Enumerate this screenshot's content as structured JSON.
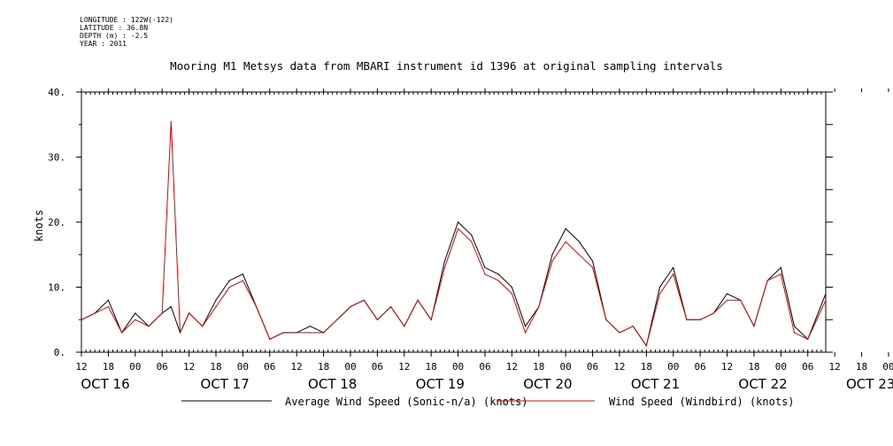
{
  "meta": {
    "longitude": "LONGITUDE : 122W(-122)",
    "latitude": "LATITUDE : 36.8N",
    "depth": "DEPTH (m) : -2.5",
    "year": "YEAR : 2011"
  },
  "colors": {
    "average": "#000000",
    "windbird": "#dd0000"
  },
  "chart_data": {
    "type": "line",
    "title": "Mooring M1 Metsys data from MBARI instrument id 1396 at original sampling intervals",
    "xlabel": "",
    "ylabel": "knots",
    "ylim": [
      0,
      40
    ],
    "yticks": [
      0,
      10,
      20,
      30,
      40
    ],
    "ytick_labels": [
      "0.",
      "10.",
      "20.",
      "30.",
      "40."
    ],
    "xlim": [
      "2011-10-16 12:00",
      "2011-10-23 10:00"
    ],
    "hour_ticks": [
      "12",
      "18",
      "00",
      "06",
      "12",
      "18",
      "00",
      "06",
      "12",
      "18",
      "00",
      "06",
      "12",
      "18",
      "00",
      "06",
      "12",
      "18",
      "00",
      "06",
      "12",
      "18",
      "00",
      "06",
      "12",
      "18",
      "00",
      "06",
      "12",
      "18",
      "00",
      "06"
    ],
    "date_labels": [
      "OCT 16",
      "OCT 17",
      "OCT 18",
      "OCT 19",
      "OCT 20",
      "OCT 21",
      "OCT 22",
      "OCT 23"
    ],
    "grid": false,
    "legend_position": "bottom",
    "series": [
      {
        "name": "Average Wind Speed (Sonic-n/a) (knots)",
        "x": [
          "2011-10-16 12:00",
          "2011-10-16 15:00",
          "2011-10-16 18:00",
          "2011-10-16 21:00",
          "2011-10-17 00:00",
          "2011-10-17 03:00",
          "2011-10-17 06:00",
          "2011-10-17 08:00",
          "2011-10-17 10:00",
          "2011-10-17 12:00",
          "2011-10-17 15:00",
          "2011-10-17 18:00",
          "2011-10-17 21:00",
          "2011-10-18 00:00",
          "2011-10-18 03:00",
          "2011-10-18 06:00",
          "2011-10-18 09:00",
          "2011-10-18 12:00",
          "2011-10-18 15:00",
          "2011-10-18 18:00",
          "2011-10-18 21:00",
          "2011-10-19 00:00",
          "2011-10-19 03:00",
          "2011-10-19 06:00",
          "2011-10-19 09:00",
          "2011-10-19 12:00",
          "2011-10-19 15:00",
          "2011-10-19 18:00",
          "2011-10-19 21:00",
          "2011-10-20 00:00",
          "2011-10-20 03:00",
          "2011-10-20 06:00",
          "2011-10-20 09:00",
          "2011-10-20 12:00",
          "2011-10-20 15:00",
          "2011-10-20 18:00",
          "2011-10-20 21:00",
          "2011-10-21 00:00",
          "2011-10-21 03:00",
          "2011-10-21 06:00",
          "2011-10-21 09:00",
          "2011-10-21 12:00",
          "2011-10-21 15:00",
          "2011-10-21 18:00",
          "2011-10-21 21:00",
          "2011-10-22 00:00",
          "2011-10-22 03:00",
          "2011-10-22 06:00",
          "2011-10-22 09:00",
          "2011-10-22 12:00",
          "2011-10-22 15:00",
          "2011-10-22 18:00",
          "2011-10-22 21:00",
          "2011-10-23 00:00",
          "2011-10-23 03:00",
          "2011-10-23 06:00",
          "2011-10-23 10:00"
        ],
        "values": [
          5,
          6,
          8,
          3,
          6,
          4,
          6,
          7,
          3,
          6,
          4,
          8,
          11,
          12,
          7,
          2,
          3,
          3,
          4,
          3,
          5,
          7,
          8,
          5,
          7,
          4,
          8,
          5,
          14,
          20,
          18,
          13,
          12,
          10,
          4,
          7,
          15,
          19,
          17,
          14,
          5,
          3,
          4,
          1,
          10,
          13,
          5,
          5,
          6,
          9,
          8,
          4,
          11,
          13,
          4,
          2,
          9
        ]
      },
      {
        "name": "Wind Speed (Windbird) (knots)",
        "x": [
          "2011-10-16 12:00",
          "2011-10-16 15:00",
          "2011-10-16 18:00",
          "2011-10-16 21:00",
          "2011-10-17 00:00",
          "2011-10-17 03:00",
          "2011-10-17 06:00",
          "2011-10-17 08:00",
          "2011-10-17 10:00",
          "2011-10-17 12:00",
          "2011-10-17 15:00",
          "2011-10-17 18:00",
          "2011-10-17 21:00",
          "2011-10-18 00:00",
          "2011-10-18 03:00",
          "2011-10-18 06:00",
          "2011-10-18 09:00",
          "2011-10-18 12:00",
          "2011-10-18 15:00",
          "2011-10-18 18:00",
          "2011-10-18 21:00",
          "2011-10-19 00:00",
          "2011-10-19 03:00",
          "2011-10-19 06:00",
          "2011-10-19 09:00",
          "2011-10-19 12:00",
          "2011-10-19 15:00",
          "2011-10-19 18:00",
          "2011-10-19 21:00",
          "2011-10-20 00:00",
          "2011-10-20 03:00",
          "2011-10-20 06:00",
          "2011-10-20 09:00",
          "2011-10-20 12:00",
          "2011-10-20 15:00",
          "2011-10-20 18:00",
          "2011-10-20 21:00",
          "2011-10-21 00:00",
          "2011-10-21 03:00",
          "2011-10-21 06:00",
          "2011-10-21 09:00",
          "2011-10-21 12:00",
          "2011-10-21 15:00",
          "2011-10-21 18:00",
          "2011-10-21 21:00",
          "2011-10-22 00:00",
          "2011-10-22 03:00",
          "2011-10-22 06:00",
          "2011-10-22 09:00",
          "2011-10-22 12:00",
          "2011-10-22 15:00",
          "2011-10-22 18:00",
          "2011-10-22 21:00",
          "2011-10-23 00:00",
          "2011-10-23 03:00",
          "2011-10-23 06:00",
          "2011-10-23 10:00"
        ],
        "values": [
          5,
          6,
          7,
          3,
          5,
          4,
          6,
          35.5,
          3,
          6,
          4,
          7,
          10,
          11,
          7,
          2,
          3,
          3,
          3,
          3,
          5,
          7,
          8,
          5,
          7,
          4,
          8,
          5,
          13,
          19,
          17,
          12,
          11,
          9,
          3,
          7,
          14,
          17,
          15,
          13,
          5,
          3,
          4,
          1,
          9,
          12,
          5,
          5,
          6,
          8,
          8,
          4,
          11,
          12,
          3,
          2,
          8
        ]
      }
    ]
  }
}
